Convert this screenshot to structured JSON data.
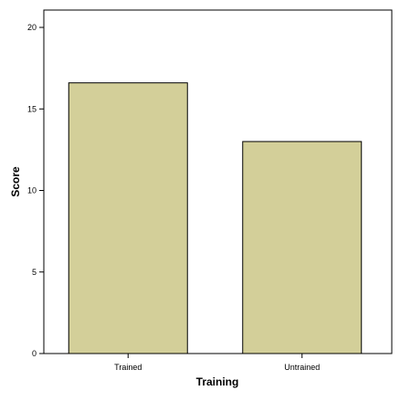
{
  "chart_data": {
    "type": "bar",
    "xlabel": "Training",
    "ylabel": "Score",
    "categories": [
      "Trained",
      "Untrained"
    ],
    "values": [
      16.6,
      13.0
    ],
    "ylim": [
      0,
      20
    ],
    "yticks": [
      0,
      5,
      10,
      15,
      20
    ],
    "grid": false,
    "bar_color": "#d3cf99",
    "bar_stroke": "#000000"
  }
}
